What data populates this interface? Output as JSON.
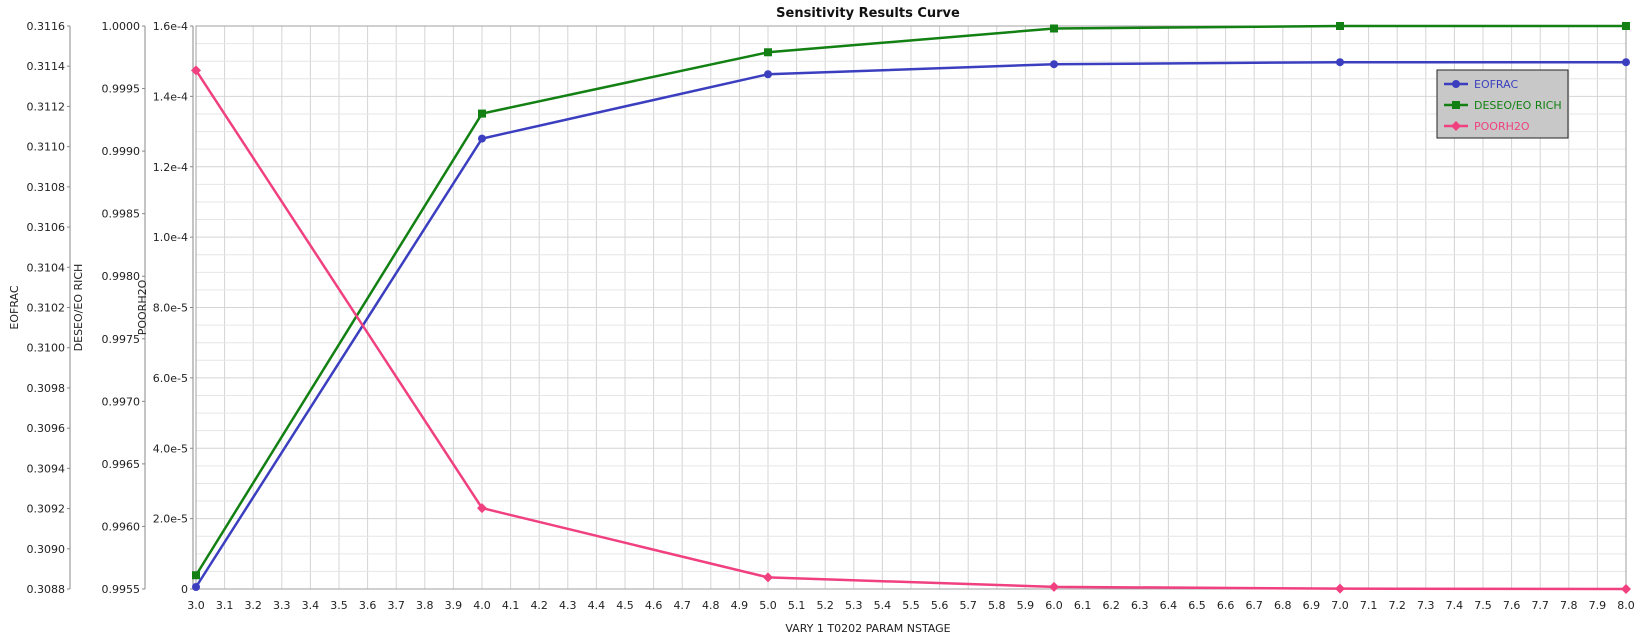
{
  "chart_data": {
    "type": "line",
    "title": "Sensitivity Results Curve",
    "xlabel": "VARY   1 T0202 PARAM NSTAGE",
    "x": [
      3.0,
      4.0,
      5.0,
      6.0,
      7.0,
      8.0
    ],
    "xlim": [
      3.0,
      8.0
    ],
    "xtick_step": 0.1,
    "grid": true,
    "legend_position": "top-right",
    "y_axes": [
      {
        "id": "eofrac",
        "label": "EOFRAC",
        "ylim": [
          0.3088,
          0.3116
        ],
        "ticks": [
          "0.3088",
          "0.3090",
          "0.3092",
          "0.3094",
          "0.3096",
          "0.3098",
          "0.3100",
          "0.3102",
          "0.3104",
          "0.3106",
          "0.3108",
          "0.3110",
          "0.3112",
          "0.3114",
          "0.3116"
        ]
      },
      {
        "id": "deseo",
        "label": "DESEO/EO RICH",
        "ylim": [
          0.9955,
          1.0
        ],
        "ticks": [
          "0.9955",
          "0.9960",
          "0.9965",
          "0.9970",
          "0.9975",
          "0.9980",
          "0.9985",
          "0.9990",
          "0.9995",
          "1.0000"
        ]
      },
      {
        "id": "poorh2o",
        "label": "POORH2O",
        "ylim": [
          0,
          0.00016
        ],
        "ticks": [
          "0",
          "2.0e-5",
          "4.0e-5",
          "6.0e-5",
          "8.0e-5",
          "1.0e-4",
          "1.2e-4",
          "1.4e-4",
          "1.6e-4"
        ]
      }
    ],
    "series": [
      {
        "name": "EOFRAC",
        "axis": "eofrac",
        "color": "#3b3fbf",
        "marker": "circle",
        "values": [
          0.30881,
          0.31104,
          0.31136,
          0.31141,
          0.31142,
          0.31142
        ]
      },
      {
        "name": "DESEO/EO RICH",
        "axis": "deseo",
        "color": "#128012",
        "marker": "square",
        "values": [
          0.99561,
          0.9993,
          0.99979,
          0.99998,
          1.0,
          1.0
        ]
      },
      {
        "name": "POORH2O",
        "axis": "poorh2o",
        "color": "#f0407f",
        "marker": "diamond",
        "values": [
          0.0001474,
          2.3e-05,
          3.3e-06,
          6e-07,
          1e-07,
          0.0
        ]
      }
    ]
  }
}
